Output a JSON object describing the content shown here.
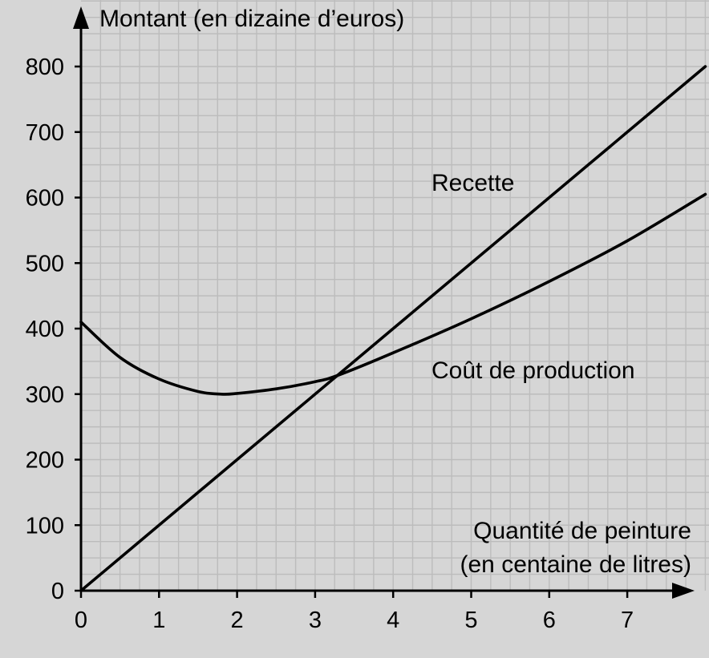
{
  "chart_data": {
    "type": "line",
    "ylabel": "Montant (en dizaine d’euros)",
    "xlabel_lines": [
      "Quantité de peinture",
      "(en centaine de litres)"
    ],
    "xlim": [
      0,
      7.85
    ],
    "ylim": [
      0,
      870
    ],
    "x_ticks": [
      0,
      1,
      2,
      3,
      4,
      5,
      6,
      7
    ],
    "y_ticks": [
      0,
      100,
      200,
      300,
      400,
      500,
      600,
      700,
      800
    ],
    "grid": true,
    "series": [
      {
        "name": "Recette",
        "x": [
          0,
          1,
          2,
          3,
          4,
          5,
          6,
          7,
          8
        ],
        "y": [
          0,
          100,
          200,
          300,
          400,
          500,
          600,
          700,
          800
        ]
      },
      {
        "name": "Coût de production",
        "x": [
          0,
          0.5,
          1,
          1.5,
          1.8,
          2,
          2.5,
          3,
          3.3,
          4,
          5,
          6,
          7,
          8
        ],
        "y": [
          410,
          356,
          323,
          304,
          300,
          301,
          308,
          319,
          329,
          363,
          415,
          472,
          534,
          605
        ]
      }
    ]
  }
}
